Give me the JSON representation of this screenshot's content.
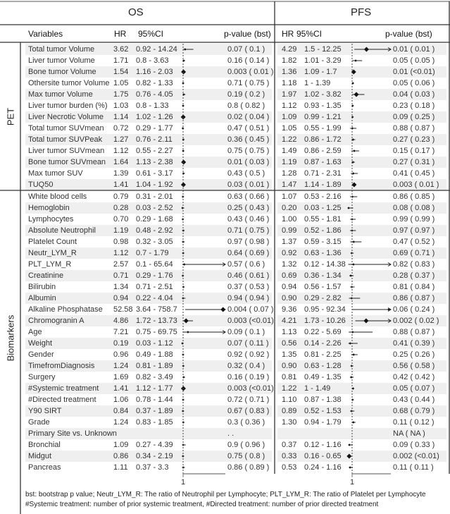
{
  "chart_data": {
    "type": "table",
    "sections": {
      "os": "OS",
      "pfs": "PFS"
    },
    "headers": {
      "variables": "Variables",
      "hr": "HR",
      "ci": "95%CI",
      "p": "p-value (bst)"
    },
    "groups": {
      "pet": "PET",
      "biomarkers": "Biomarkers"
    },
    "axis_tick": "1",
    "pet_rows": [
      {
        "name": "Total tumor Volume",
        "os": {
          "hr": "3.62",
          "ci": "0.92 - 14.24",
          "p": "0.07 ( 0.1 )"
        },
        "pfs": {
          "hr": "4.29",
          "ci": "1.5 - 12.25",
          "p": "0.01 ( 0.01 )"
        }
      },
      {
        "name": "Liver tumor Volume",
        "os": {
          "hr": "1.71",
          "ci": "0.8 - 3.63",
          "p": "0.16 ( 0.14 )"
        },
        "pfs": {
          "hr": "1.82",
          "ci": "1.01 - 3.29",
          "p": "0.05 ( 0.05 )"
        }
      },
      {
        "name": "Bone tumor Volume",
        "os": {
          "hr": "1.54",
          "ci": "1.16 - 2.03",
          "p": "0.003 ( 0.01 )"
        },
        "pfs": {
          "hr": "1.36",
          "ci": "1.09 - 1.7",
          "p": "0.01 (<0.01)"
        }
      },
      {
        "name": "Othersite tumor Volume",
        "os": {
          "hr": "1.05",
          "ci": "0.82 - 1.33",
          "p": "0.71 ( 0.75 )"
        },
        "pfs": {
          "hr": "1.18",
          "ci": "1 - 1.39",
          "p": "0.05 ( 0.06 )"
        }
      },
      {
        "name": "Max tumor Volume",
        "os": {
          "hr": "1.75",
          "ci": "0.76 - 4.05",
          "p": "0.19 ( 0.2 )"
        },
        "pfs": {
          "hr": "1.97",
          "ci": "1.02 - 3.82",
          "p": "0.04 ( 0.03 )"
        }
      },
      {
        "name": "Liver tumor burden (%)",
        "os": {
          "hr": "1.03",
          "ci": "0.8 - 1.33",
          "p": "0.8 ( 0.82 )"
        },
        "pfs": {
          "hr": "1.12",
          "ci": "0.93 - 1.35",
          "p": "0.23 ( 0.18 )"
        }
      },
      {
        "name": "Liver Necrotic Volume",
        "os": {
          "hr": "1.14",
          "ci": "1.02 - 1.26",
          "p": "0.02 ( 0.04 )"
        },
        "pfs": {
          "hr": "1.09",
          "ci": "0.99 - 1.21",
          "p": "0.09 ( 0.25 )"
        }
      },
      {
        "name": "Total tumor SUVmean",
        "os": {
          "hr": "0.72",
          "ci": "0.29 - 1.77",
          "p": "0.47 ( 0.51 )"
        },
        "pfs": {
          "hr": "1.05",
          "ci": "0.55 - 1.99",
          "p": "0.88 ( 0.87 )"
        }
      },
      {
        "name": "Total tumor SUVPeak",
        "os": {
          "hr": "1.27",
          "ci": "0.76 - 2.11",
          "p": "0.36 ( 0.45 )"
        },
        "pfs": {
          "hr": "1.22",
          "ci": "0.86 - 1.72",
          "p": "0.27 ( 0.23 )"
        }
      },
      {
        "name": "Liver tumor SUVmean",
        "os": {
          "hr": "1.12",
          "ci": "0.55 - 2.27",
          "p": "0.75 ( 0.75 )"
        },
        "pfs": {
          "hr": "1.49",
          "ci": "0.86 - 2.59",
          "p": "0.15 ( 0.17 )"
        }
      },
      {
        "name": "Bone tumor SUVmean",
        "os": {
          "hr": "1.64",
          "ci": "1.13 - 2.38",
          "p": "0.01 ( 0.03 )"
        },
        "pfs": {
          "hr": "1.19",
          "ci": "0.87 - 1.63",
          "p": "0.27 ( 0.31 )"
        }
      },
      {
        "name": "Max tumor SUV",
        "os": {
          "hr": "1.39",
          "ci": "0.61 - 3.17",
          "p": "0.43 ( 0.5 )"
        },
        "pfs": {
          "hr": "1.28",
          "ci": "0.71 - 2.31",
          "p": "0.41 ( 0.45 )"
        }
      },
      {
        "name": "TUQ50",
        "os": {
          "hr": "1.41",
          "ci": "1.04 - 1.92",
          "p": "0.03 ( 0.01 )"
        },
        "pfs": {
          "hr": "1.47",
          "ci": "1.14 - 1.89",
          "p": "0.003 ( 0.01 )"
        }
      }
    ],
    "biomarker_rows": [
      {
        "name": "White blood cells",
        "os": {
          "hr": "0.79",
          "ci": "0.31 - 2.01",
          "p": "0.63 ( 0.66 )"
        },
        "pfs": {
          "hr": "1.07",
          "ci": "0.53 - 2.16",
          "p": "0.86 ( 0.85 )"
        }
      },
      {
        "name": "Hemoglobin",
        "os": {
          "hr": "0.28",
          "ci": "0.03 - 2.52",
          "p": "0.25 ( 0.43 )"
        },
        "pfs": {
          "hr": "0.20",
          "ci": "0.03 - 1.25",
          "p": "0.08 ( 0.08 )"
        }
      },
      {
        "name": "Lymphocytes",
        "os": {
          "hr": "0.70",
          "ci": "0.29 - 1.68",
          "p": "0.43 ( 0.46 )"
        },
        "pfs": {
          "hr": "1.00",
          "ci": "0.55 - 1.81",
          "p": "0.99 ( 0.99 )"
        }
      },
      {
        "name": "Absolute Neutrophil",
        "os": {
          "hr": "1.19",
          "ci": "0.48 - 2.92",
          "p": "0.71 ( 0.75 )"
        },
        "pfs": {
          "hr": "0.99",
          "ci": "0.52 - 1.86",
          "p": "0.97 ( 0.97 )"
        }
      },
      {
        "name": "Platelet Count",
        "os": {
          "hr": "0.98",
          "ci": "0.32 - 3.05",
          "p": "0.97 ( 0.98 )"
        },
        "pfs": {
          "hr": "1.37",
          "ci": "0.59 - 3.15",
          "p": "0.47 ( 0.52 )"
        }
      },
      {
        "name": "Neutr_LYM_R",
        "os": {
          "hr": "1.12",
          "ci": "0.7 - 1.79",
          "p": "0.64 ( 0.69 )"
        },
        "pfs": {
          "hr": "0.92",
          "ci": "0.63 - 1.36",
          "p": "0.69 ( 0.71 )"
        }
      },
      {
        "name": "PLT_LYM_R",
        "os": {
          "hr": "2.57",
          "ci": "0.1 - 65.64",
          "p": "0.57 ( 0.6 )"
        },
        "pfs": {
          "hr": "1.32",
          "ci": "0.12 - 14.38",
          "p": "0.82 ( 0.83 )"
        }
      },
      {
        "name": "Creatinine",
        "os": {
          "hr": "0.71",
          "ci": "0.29 - 1.76",
          "p": "0.46 ( 0.61 )"
        },
        "pfs": {
          "hr": "0.69",
          "ci": "0.36 - 1.34",
          "p": "0.28 ( 0.37 )"
        }
      },
      {
        "name": "Bilirubin",
        "os": {
          "hr": "1.34",
          "ci": "0.71 - 2.51",
          "p": "0.37 ( 0.53 )"
        },
        "pfs": {
          "hr": "0.94",
          "ci": "0.56 - 1.57",
          "p": "0.81 ( 0.84 )"
        }
      },
      {
        "name": "Albumin",
        "os": {
          "hr": "0.94",
          "ci": "0.22 - 4.04",
          "p": "0.94 ( 0.94 )"
        },
        "pfs": {
          "hr": "0.90",
          "ci": "0.29 - 2.82",
          "p": "0.86 ( 0.87 )"
        }
      },
      {
        "name": "Alkaline Phosphatase",
        "os": {
          "hr": "52.58",
          "ci": "3.64 - 758.7",
          "p": "0.004 ( 0.07 )"
        },
        "pfs": {
          "hr": "9.36",
          "ci": "0.95 - 92.34",
          "p": "0.06 ( 0.24 )"
        }
      },
      {
        "name": "Chromogranin A",
        "os": {
          "hr": "4.86",
          "ci": "1.72 - 13.73",
          "p": "0.003 (<0.01)"
        },
        "pfs": {
          "hr": "4.21",
          "ci": "1.73 - 10.26",
          "p": "0.002 ( 0.02 )"
        }
      },
      {
        "name": "Age",
        "os": {
          "hr": "7.21",
          "ci": "0.75 - 69.75",
          "p": "0.09 ( 0.1 )"
        },
        "pfs": {
          "hr": "1.13",
          "ci": "0.22 - 5.69",
          "p": "0.88 ( 0.87 )"
        }
      },
      {
        "name": "Weight",
        "os": {
          "hr": "0.19",
          "ci": "0.03 - 1.12",
          "p": "0.07 ( 0.11 )"
        },
        "pfs": {
          "hr": "0.56",
          "ci": "0.14 - 2.26",
          "p": "0.41 ( 0.39 )"
        }
      },
      {
        "name": "Gender",
        "os": {
          "hr": "0.96",
          "ci": "0.49 - 1.88",
          "p": "0.92 ( 0.92 )"
        },
        "pfs": {
          "hr": "1.35",
          "ci": "0.81 - 2.25",
          "p": "0.25 ( 0.26 )"
        }
      },
      {
        "name": "TimefromDiagnosis",
        "os": {
          "hr": "1.24",
          "ci": "0.81 - 1.89",
          "p": "0.32 ( 0.4 )"
        },
        "pfs": {
          "hr": "0.90",
          "ci": "0.63 - 1.28",
          "p": "0.56 ( 0.58 )"
        }
      },
      {
        "name": "Surgery",
        "os": {
          "hr": "1.69",
          "ci": "0.82 - 3.49",
          "p": "0.16 ( 0.19 )"
        },
        "pfs": {
          "hr": "0.81",
          "ci": "0.49 - 1.35",
          "p": "0.42 ( 0.42 )"
        }
      },
      {
        "name": "#Systemic treatment",
        "os": {
          "hr": "1.41",
          "ci": "1.12 - 1.77",
          "p": "0.003 (<0.01)"
        },
        "pfs": {
          "hr": "1.22",
          "ci": "1 - 1.49",
          "p": "0.05 ( 0.07 )"
        }
      },
      {
        "name": "#Directed treatment",
        "os": {
          "hr": "1.06",
          "ci": "0.78 - 1.44",
          "p": "0.72 ( 0.71 )"
        },
        "pfs": {
          "hr": "1.10",
          "ci": "0.87 - 1.38",
          "p": "0.43 ( 0.44 )"
        }
      },
      {
        "name": "Y90 SIRT",
        "os": {
          "hr": "0.84",
          "ci": "0.37 - 1.89",
          "p": "0.67 ( 0.83 )"
        },
        "pfs": {
          "hr": "0.89",
          "ci": "0.52 - 1.53",
          "p": "0.68 ( 0.79 )"
        }
      },
      {
        "name": "Grade",
        "os": {
          "hr": "1.24",
          "ci": "0.83 - 1.85",
          "p": "0.3 ( 0.36 )"
        },
        "pfs": {
          "hr": "1.30",
          "ci": "0.94 - 1.79",
          "p": "0.11 ( 0.12 )"
        }
      },
      {
        "name": "Primary Site vs. Unknown",
        "os": {
          "hr": "",
          "ci": "",
          "p": ".   ."
        },
        "pfs": {
          "hr": "",
          "ci": "",
          "p": "NA ( NA )"
        }
      },
      {
        "name": "Bronchial",
        "os": {
          "hr": "1.09",
          "ci": "0.27 - 4.39",
          "p": "0.9 ( 0.96 )"
        },
        "pfs": {
          "hr": "0.37",
          "ci": "0.12 - 1.16",
          "p": "0.09 ( 0.33 )"
        }
      },
      {
        "name": "Midgut",
        "os": {
          "hr": "0.86",
          "ci": "0.34 - 2.19",
          "p": "0.75 ( 0.8 )"
        },
        "pfs": {
          "hr": "0.33",
          "ci": "0.16 - 0.65",
          "p": "0.002 (<0.01)"
        }
      },
      {
        "name": "Pancreas",
        "os": {
          "hr": "1.11",
          "ci": "0.37 - 3.3",
          "p": "0.86 ( 0.89 )"
        },
        "pfs": {
          "hr": "0.53",
          "ci": "0.24 - 1.16",
          "p": "0.11 ( 0.11 )"
        }
      }
    ],
    "footnote": [
      "bst: bootstrap p value; Neutr_LYM_R: The ratio of Neutrophil per Lymphocyte; PLT_LYM_R: The ratio of Platelet per Lymphocyte",
      "#Systemic treatment: number of prior systemic treatment, #Directed treatment: number of prior directed treatment"
    ],
    "reference_line": 1,
    "colors": {
      "text": "#333333",
      "shade": "#efefef",
      "line": "#222222"
    }
  }
}
